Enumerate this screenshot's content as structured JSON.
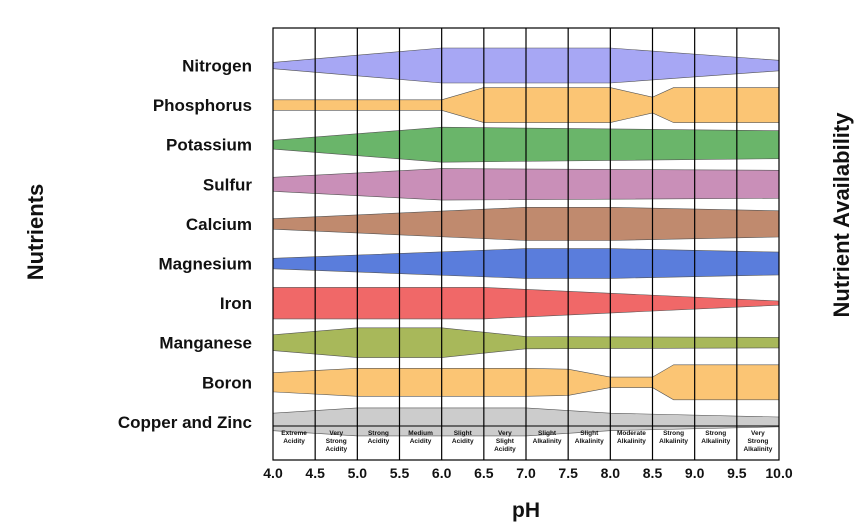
{
  "chart_data": {
    "type": "area",
    "title": "",
    "xlabel": "pH",
    "ylabel": "Nutrients",
    "y2label": "Nutrient Availability",
    "xlim": [
      4.0,
      10.0
    ],
    "xticks": [
      "4.0",
      "4.5",
      "5.0",
      "5.5",
      "6.0",
      "6.5",
      "7.0",
      "7.5",
      "8.0",
      "8.5",
      "9.0",
      "9.5",
      "10.0"
    ],
    "categories": [
      [
        "Extreme",
        "Acidity"
      ],
      [
        "Very",
        "Strong",
        "Acidity"
      ],
      [
        "Strong",
        "Acidity"
      ],
      [
        "Medium",
        "Acidity"
      ],
      [
        "Slight",
        "Acidity"
      ],
      [
        "Very",
        "Slight",
        "Acidity"
      ],
      [
        "Slight",
        "Alkalinity"
      ],
      [
        "Slight",
        "Alkalinity"
      ],
      [
        "Moderate",
        "Alkalinity"
      ],
      [
        "Strong",
        "Alkalinity"
      ],
      [
        "Strong",
        "Alkalinity"
      ],
      [
        "Very",
        "Strong",
        "Alkalinity"
      ]
    ],
    "availability_scale": "relative band thickness, 0 (none) to 1 (maximum)",
    "series": [
      {
        "name": "Nitrogen",
        "color": "#a7a7f4",
        "points": [
          [
            4.0,
            0.18
          ],
          [
            6.0,
            1.0
          ],
          [
            8.0,
            1.0
          ],
          [
            10.0,
            0.3
          ]
        ]
      },
      {
        "name": "Phosphorus",
        "color": "#fbc574",
        "points": [
          [
            4.0,
            0.3
          ],
          [
            6.0,
            0.3
          ],
          [
            6.5,
            1.0
          ],
          [
            8.0,
            1.0
          ],
          [
            8.5,
            0.45
          ],
          [
            8.75,
            1.0
          ],
          [
            10.0,
            1.0
          ]
        ]
      },
      {
        "name": "Potassium",
        "color": "#6ab56a",
        "points": [
          [
            4.0,
            0.25
          ],
          [
            6.0,
            1.0
          ],
          [
            10.0,
            0.8
          ]
        ]
      },
      {
        "name": "Sulfur",
        "color": "#c98fb8",
        "points": [
          [
            4.0,
            0.4
          ],
          [
            6.0,
            0.9
          ],
          [
            10.0,
            0.8
          ]
        ]
      },
      {
        "name": "Calcium",
        "color": "#c08a6e",
        "points": [
          [
            4.0,
            0.3
          ],
          [
            7.0,
            0.95
          ],
          [
            8.0,
            0.95
          ],
          [
            10.0,
            0.75
          ]
        ]
      },
      {
        "name": "Magnesium",
        "color": "#5a7ddc",
        "points": [
          [
            4.0,
            0.3
          ],
          [
            7.0,
            0.85
          ],
          [
            8.0,
            0.85
          ],
          [
            10.0,
            0.65
          ]
        ]
      },
      {
        "name": "Iron",
        "color": "#f06868",
        "points": [
          [
            4.0,
            0.9
          ],
          [
            6.5,
            0.9
          ],
          [
            10.0,
            0.12
          ]
        ]
      },
      {
        "name": "Manganese",
        "color": "#a8b85a",
        "points": [
          [
            4.0,
            0.45
          ],
          [
            5.0,
            0.85
          ],
          [
            6.0,
            0.85
          ],
          [
            7.0,
            0.35
          ],
          [
            10.0,
            0.3
          ]
        ]
      },
      {
        "name": "Boron",
        "color": "#fbc574",
        "points": [
          [
            4.0,
            0.55
          ],
          [
            5.0,
            0.8
          ],
          [
            7.0,
            0.8
          ],
          [
            7.5,
            0.75
          ],
          [
            8.0,
            0.3
          ],
          [
            8.5,
            0.3
          ],
          [
            8.75,
            1.0
          ],
          [
            10.0,
            1.0
          ]
        ]
      },
      {
        "name": "Copper and Zinc",
        "color": "#cccccc",
        "points": [
          [
            4.0,
            0.5
          ],
          [
            5.0,
            0.8
          ],
          [
            7.0,
            0.8
          ],
          [
            8.0,
            0.5
          ],
          [
            10.0,
            0.28
          ]
        ]
      }
    ]
  }
}
